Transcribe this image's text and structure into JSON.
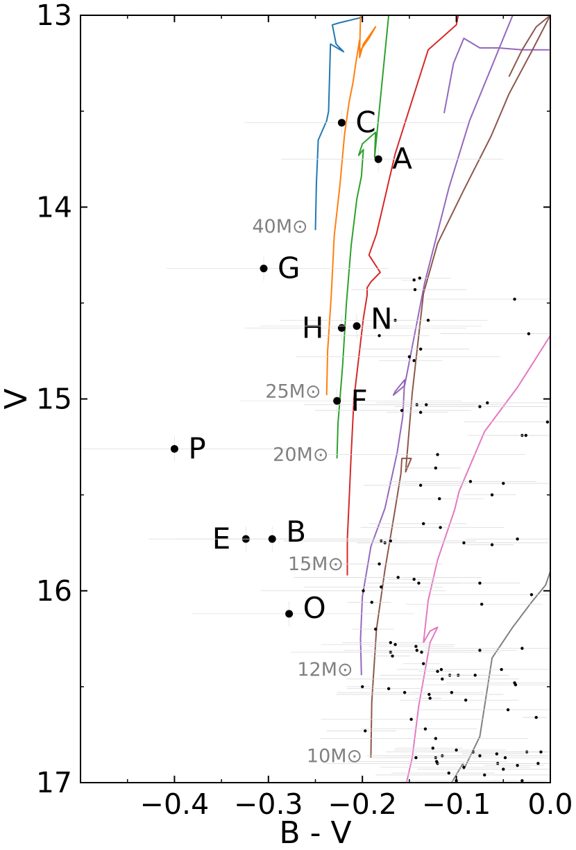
{
  "chart_data": {
    "type": "scatter",
    "xlabel": "B - V",
    "ylabel": "V",
    "xlim": [
      -0.5,
      0.0
    ],
    "ylim": [
      17,
      13
    ],
    "y_inverted": true,
    "x_ticks": [
      -0.4,
      -0.3,
      -0.2,
      -0.1,
      0.0
    ],
    "x_tick_labels": [
      "−0.4",
      "−0.3",
      "−0.2",
      "−0.1",
      "0.0"
    ],
    "y_ticks": [
      13,
      14,
      15,
      16,
      17
    ],
    "y_tick_labels": [
      "13",
      "14",
      "15",
      "16",
      "17"
    ],
    "grid": false,
    "labeled_stars": [
      {
        "label": "C",
        "x": -0.222,
        "y": 13.56
      },
      {
        "label": "A",
        "x": -0.183,
        "y": 13.75
      },
      {
        "label": "G",
        "x": -0.305,
        "y": 14.32
      },
      {
        "label": "H",
        "x": -0.222,
        "y": 14.63
      },
      {
        "label": "N",
        "x": -0.206,
        "y": 14.62
      },
      {
        "label": "F",
        "x": -0.227,
        "y": 15.01
      },
      {
        "label": "P",
        "x": -0.4,
        "y": 15.26
      },
      {
        "label": "E",
        "x": -0.324,
        "y": 15.73
      },
      {
        "label": "B",
        "x": -0.296,
        "y": 15.73
      },
      {
        "label": "O",
        "x": -0.278,
        "y": 16.12
      }
    ],
    "field_stars": [
      [
        -0.145,
        14.38
      ],
      [
        -0.139,
        14.37
      ],
      [
        -0.144,
        14.43
      ],
      [
        -0.038,
        14.48
      ],
      [
        -0.165,
        14.59
      ],
      [
        -0.13,
        14.59
      ],
      [
        -0.182,
        14.67
      ],
      [
        -0.023,
        14.66
      ],
      [
        -0.15,
        14.78
      ],
      [
        -0.145,
        14.8
      ],
      [
        -0.138,
        14.74
      ],
      [
        -0.158,
        15.06
      ],
      [
        -0.142,
        15.03
      ],
      [
        -0.138,
        15.07
      ],
      [
        -0.132,
        15.03
      ],
      [
        -0.075,
        15.04
      ],
      [
        -0.067,
        15.02
      ],
      [
        -0.03,
        15.19
      ],
      [
        -0.026,
        15.19
      ],
      [
        -0.003,
        15.12
      ],
      [
        -0.12,
        15.29
      ],
      [
        -0.122,
        15.36
      ],
      [
        -0.138,
        15.45
      ],
      [
        -0.085,
        15.43
      ],
      [
        -0.05,
        15.44
      ],
      [
        -0.062,
        15.5
      ],
      [
        -0.118,
        15.52
      ],
      [
        -0.18,
        15.74
      ],
      [
        -0.17,
        15.74
      ],
      [
        -0.176,
        15.75
      ],
      [
        -0.135,
        15.65
      ],
      [
        -0.117,
        15.67
      ],
      [
        -0.092,
        15.75
      ],
      [
        -0.062,
        15.76
      ],
      [
        -0.035,
        15.73
      ],
      [
        -0.182,
        15.86
      ],
      [
        -0.162,
        15.93
      ],
      [
        -0.145,
        15.94
      ],
      [
        -0.14,
        15.96
      ],
      [
        -0.18,
        15.98
      ],
      [
        -0.199,
        16.0
      ],
      [
        -0.19,
        16.06
      ],
      [
        -0.075,
        15.96
      ],
      [
        -0.073,
        16.07
      ],
      [
        -0.02,
        16.02
      ],
      [
        -0.186,
        16.2
      ],
      [
        -0.17,
        16.27
      ],
      [
        -0.165,
        16.28
      ],
      [
        -0.17,
        16.32
      ],
      [
        -0.168,
        16.34
      ],
      [
        -0.143,
        16.29
      ],
      [
        -0.142,
        16.31
      ],
      [
        -0.137,
        16.32
      ],
      [
        -0.135,
        16.38
      ],
      [
        -0.075,
        16.31
      ],
      [
        -0.052,
        16.41
      ],
      [
        -0.03,
        16.3
      ],
      [
        -0.12,
        16.42
      ],
      [
        -0.116,
        16.41
      ],
      [
        -0.107,
        16.44
      ],
      [
        -0.115,
        16.46
      ],
      [
        -0.098,
        16.44
      ],
      [
        -0.08,
        16.44
      ],
      [
        -0.038,
        16.48
      ],
      [
        -0.037,
        16.49
      ],
      [
        -0.2,
        16.5
      ],
      [
        -0.172,
        16.51
      ],
      [
        -0.155,
        16.53
      ],
      [
        -0.129,
        16.54
      ],
      [
        -0.128,
        16.56
      ],
      [
        -0.105,
        16.53
      ],
      [
        -0.09,
        16.57
      ],
      [
        -0.045,
        16.62
      ],
      [
        -0.015,
        16.66
      ],
      [
        -0.197,
        16.73
      ],
      [
        -0.133,
        16.72
      ],
      [
        -0.148,
        16.67
      ],
      [
        -0.122,
        16.77
      ],
      [
        -0.125,
        16.82
      ],
      [
        -0.122,
        16.87
      ],
      [
        -0.121,
        16.89
      ],
      [
        -0.12,
        16.9
      ],
      [
        -0.115,
        16.86
      ],
      [
        -0.1,
        16.83
      ],
      [
        -0.082,
        16.84
      ],
      [
        -0.075,
        16.86
      ],
      [
        -0.057,
        16.85
      ],
      [
        -0.056,
        16.9
      ],
      [
        -0.05,
        16.93
      ],
      [
        -0.048,
        16.87
      ],
      [
        -0.035,
        16.91
      ],
      [
        -0.025,
        16.84
      ],
      [
        -0.013,
        16.9
      ],
      [
        -0.01,
        16.84
      ],
      [
        -0.143,
        16.87
      ],
      [
        -0.108,
        16.95
      ],
      [
        -0.092,
        16.92
      ],
      [
        -0.07,
        16.96
      ],
      [
        -0.03,
        16.99
      ],
      [
        -0.1,
        16.99
      ]
    ],
    "series": [
      {
        "color": "#1f77b4",
        "points": [
          [
            -0.25,
            14.12
          ],
          [
            -0.249,
            13.88
          ],
          [
            -0.247,
            13.65
          ],
          [
            -0.238,
            13.55
          ],
          [
            -0.236,
            13.5
          ],
          [
            -0.234,
            13.15
          ],
          [
            -0.22,
            13.19
          ],
          [
            -0.228,
            13.15
          ],
          [
            -0.232,
            13.05
          ],
          [
            -0.225,
            13.04
          ],
          [
            -0.2,
            13.01
          ]
        ]
      },
      {
        "color": "#ff7f0e",
        "points": [
          [
            -0.238,
            14.98
          ],
          [
            -0.237,
            14.75
          ],
          [
            -0.233,
            14.45
          ],
          [
            -0.23,
            14.15
          ],
          [
            -0.224,
            13.89
          ],
          [
            -0.219,
            13.62
          ],
          [
            -0.214,
            13.45
          ],
          [
            -0.21,
            13.35
          ],
          [
            -0.207,
            13.25
          ],
          [
            -0.203,
            13.13
          ],
          [
            -0.203,
            13.19
          ],
          [
            -0.193,
            13.12
          ],
          [
            -0.186,
            13.06
          ],
          [
            -0.199,
            13.15
          ],
          [
            -0.203,
            13.22
          ],
          [
            -0.202,
            13.0
          ]
        ]
      },
      {
        "color": "#2ca02c",
        "points": [
          [
            -0.227,
            15.31
          ],
          [
            -0.226,
            15.13
          ],
          [
            -0.221,
            14.82
          ],
          [
            -0.217,
            14.5
          ],
          [
            -0.212,
            14.2
          ],
          [
            -0.206,
            13.96
          ],
          [
            -0.201,
            13.84
          ],
          [
            -0.199,
            13.7
          ],
          [
            -0.204,
            13.73
          ],
          [
            -0.2,
            13.67
          ],
          [
            -0.186,
            13.61
          ],
          [
            -0.187,
            13.74
          ],
          [
            -0.172,
            13.0
          ]
        ]
      },
      {
        "color": "#d62728",
        "points": [
          [
            -0.216,
            15.92
          ],
          [
            -0.216,
            15.73
          ],
          [
            -0.214,
            15.52
          ],
          [
            -0.212,
            15.29
          ],
          [
            -0.209,
            15.0
          ],
          [
            -0.204,
            14.79
          ],
          [
            -0.199,
            14.58
          ],
          [
            -0.195,
            14.46
          ],
          [
            -0.195,
            14.42
          ],
          [
            -0.191,
            14.39
          ],
          [
            -0.181,
            14.34
          ],
          [
            -0.193,
            14.25
          ],
          [
            -0.185,
            14.14
          ],
          [
            -0.165,
            13.72
          ],
          [
            -0.13,
            13.18
          ],
          [
            -0.1,
            13.05
          ],
          [
            -0.098,
            13.0
          ]
        ]
      },
      {
        "color": "#9467bd",
        "points": [
          [
            -0.201,
            16.44
          ],
          [
            -0.202,
            16.25
          ],
          [
            -0.2,
            16.03
          ],
          [
            -0.191,
            15.77
          ],
          [
            -0.176,
            15.57
          ],
          [
            -0.163,
            15.28
          ],
          [
            -0.157,
            15.09
          ],
          [
            -0.155,
            14.9
          ],
          [
            -0.165,
            14.96
          ],
          [
            -0.167,
            14.98
          ],
          [
            -0.155,
            14.93
          ],
          [
            -0.134,
            14.4
          ],
          [
            -0.108,
            13.9
          ],
          [
            -0.086,
            13.55
          ],
          [
            -0.04,
            13.0
          ]
        ]
      },
      {
        "color": "#9467bd",
        "points": [
          [
            -0.113,
            13.51
          ],
          [
            -0.103,
            13.25
          ],
          [
            -0.092,
            13.12
          ],
          [
            -0.075,
            13.17
          ],
          [
            -0.055,
            13.17
          ],
          [
            -0.03,
            13.18
          ],
          [
            -0.001,
            13.18
          ]
        ]
      },
      {
        "color": "#8c564b",
        "points": [
          [
            -0.191,
            16.87
          ],
          [
            -0.19,
            16.58
          ],
          [
            -0.185,
            16.2
          ],
          [
            -0.176,
            15.89
          ],
          [
            -0.166,
            15.6
          ],
          [
            -0.159,
            15.39
          ],
          [
            -0.158,
            15.31
          ],
          [
            -0.148,
            15.31
          ],
          [
            -0.154,
            15.38
          ],
          [
            -0.147,
            14.97
          ],
          [
            -0.135,
            14.45
          ],
          [
            -0.12,
            14.19
          ],
          [
            -0.092,
            13.91
          ],
          [
            -0.063,
            13.63
          ],
          [
            -0.044,
            13.41
          ],
          [
            -0.02,
            13.19
          ],
          [
            0.0,
            13.0
          ]
        ]
      },
      {
        "color": "#8c564b",
        "points": [
          [
            -0.044,
            13.32
          ],
          [
            -0.03,
            13.18
          ],
          [
            -0.015,
            13.06
          ],
          [
            0.0,
            13.0
          ]
        ]
      },
      {
        "color": "#e377c2",
        "points": [
          [
            -0.153,
            17.0
          ],
          [
            -0.147,
            16.87
          ],
          [
            -0.14,
            16.6
          ],
          [
            -0.128,
            16.27
          ],
          [
            -0.12,
            16.19
          ],
          [
            -0.128,
            16.21
          ],
          [
            -0.135,
            16.27
          ],
          [
            -0.13,
            16.05
          ],
          [
            -0.12,
            15.84
          ],
          [
            -0.102,
            15.58
          ],
          [
            -0.097,
            15.48
          ],
          [
            -0.07,
            15.17
          ],
          [
            -0.035,
            14.94
          ],
          [
            0.0,
            14.67
          ]
        ]
      },
      {
        "color": "#7f7f7f",
        "points": [
          [
            -0.105,
            17.0
          ],
          [
            -0.093,
            16.9
          ],
          [
            -0.092,
            16.93
          ],
          [
            -0.075,
            16.76
          ],
          [
            -0.062,
            16.35
          ],
          [
            -0.04,
            16.19
          ],
          [
            -0.02,
            16.06
          ],
          [
            -0.005,
            15.97
          ],
          [
            0.0,
            15.9
          ]
        ]
      }
    ],
    "mass_labels": [
      {
        "text": "40M⊙",
        "x": -0.258,
        "y": 14.1
      },
      {
        "text": "25M⊙",
        "x": -0.244,
        "y": 14.96
      },
      {
        "text": "20M⊙",
        "x": -0.236,
        "y": 15.29
      },
      {
        "text": "15M⊙",
        "x": -0.22,
        "y": 15.86
      },
      {
        "text": "12M⊙",
        "x": -0.21,
        "y": 16.41
      },
      {
        "text": "10M⊙",
        "x": -0.2,
        "y": 16.86
      }
    ]
  }
}
